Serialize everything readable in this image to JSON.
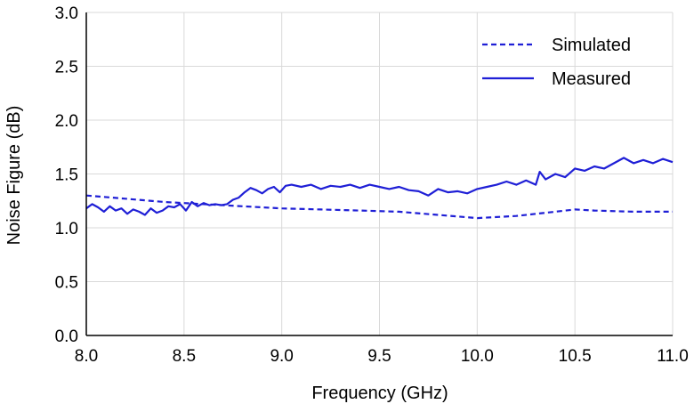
{
  "chart_data": {
    "type": "line",
    "title": "",
    "xlabel": "Frequency (GHz)",
    "ylabel": "Noise Figure (dB)",
    "xlim": [
      8.0,
      11.0
    ],
    "ylim": [
      0.0,
      3.0
    ],
    "xticks": [
      8.0,
      8.5,
      9.0,
      9.5,
      10.0,
      10.5,
      11.0
    ],
    "xtick_labels": [
      "8.0",
      "8.5",
      "9.0",
      "9.5",
      "10.0",
      "10.5",
      "11.0"
    ],
    "yticks": [
      0.0,
      0.5,
      1.0,
      1.5,
      2.0,
      2.5,
      3.0
    ],
    "ytick_labels": [
      "0.0",
      "0.5",
      "1.0",
      "1.5",
      "2.0",
      "2.5",
      "3.0"
    ],
    "grid": true,
    "legend_position": "top-right",
    "series_color": "#1f1fd6",
    "series": [
      {
        "name": "Simulated",
        "style": "dashed",
        "x": [
          8.0,
          8.2,
          8.4,
          8.6,
          8.8,
          9.0,
          9.2,
          9.4,
          9.6,
          9.8,
          10.0,
          10.2,
          10.4,
          10.5,
          10.6,
          10.8,
          11.0
        ],
        "y": [
          1.3,
          1.27,
          1.24,
          1.22,
          1.2,
          1.18,
          1.17,
          1.16,
          1.15,
          1.12,
          1.09,
          1.11,
          1.15,
          1.17,
          1.16,
          1.15,
          1.15
        ]
      },
      {
        "name": "Measured",
        "style": "solid",
        "x": [
          8.0,
          8.03,
          8.06,
          8.09,
          8.12,
          8.15,
          8.18,
          8.21,
          8.24,
          8.27,
          8.3,
          8.33,
          8.36,
          8.39,
          8.42,
          8.45,
          8.48,
          8.51,
          8.54,
          8.57,
          8.6,
          8.63,
          8.66,
          8.69,
          8.72,
          8.75,
          8.78,
          8.81,
          8.84,
          8.87,
          8.9,
          8.93,
          8.96,
          8.99,
          9.02,
          9.05,
          9.1,
          9.15,
          9.2,
          9.25,
          9.3,
          9.35,
          9.4,
          9.45,
          9.5,
          9.55,
          9.6,
          9.65,
          9.7,
          9.75,
          9.8,
          9.85,
          9.9,
          9.95,
          10.0,
          10.05,
          10.1,
          10.15,
          10.2,
          10.25,
          10.3,
          10.32,
          10.35,
          10.4,
          10.45,
          10.5,
          10.55,
          10.6,
          10.65,
          10.7,
          10.75,
          10.8,
          10.85,
          10.9,
          10.95,
          11.0
        ],
        "y": [
          1.18,
          1.22,
          1.19,
          1.15,
          1.2,
          1.16,
          1.18,
          1.13,
          1.17,
          1.15,
          1.12,
          1.18,
          1.14,
          1.16,
          1.2,
          1.19,
          1.22,
          1.16,
          1.24,
          1.2,
          1.23,
          1.21,
          1.22,
          1.21,
          1.22,
          1.26,
          1.28,
          1.33,
          1.37,
          1.35,
          1.32,
          1.36,
          1.38,
          1.33,
          1.39,
          1.4,
          1.38,
          1.4,
          1.36,
          1.39,
          1.38,
          1.4,
          1.37,
          1.4,
          1.38,
          1.36,
          1.38,
          1.35,
          1.34,
          1.3,
          1.36,
          1.33,
          1.34,
          1.32,
          1.36,
          1.38,
          1.4,
          1.43,
          1.4,
          1.44,
          1.4,
          1.52,
          1.45,
          1.5,
          1.47,
          1.55,
          1.53,
          1.57,
          1.55,
          1.6,
          1.65,
          1.6,
          1.63,
          1.6,
          1.64,
          1.61
        ]
      }
    ]
  }
}
